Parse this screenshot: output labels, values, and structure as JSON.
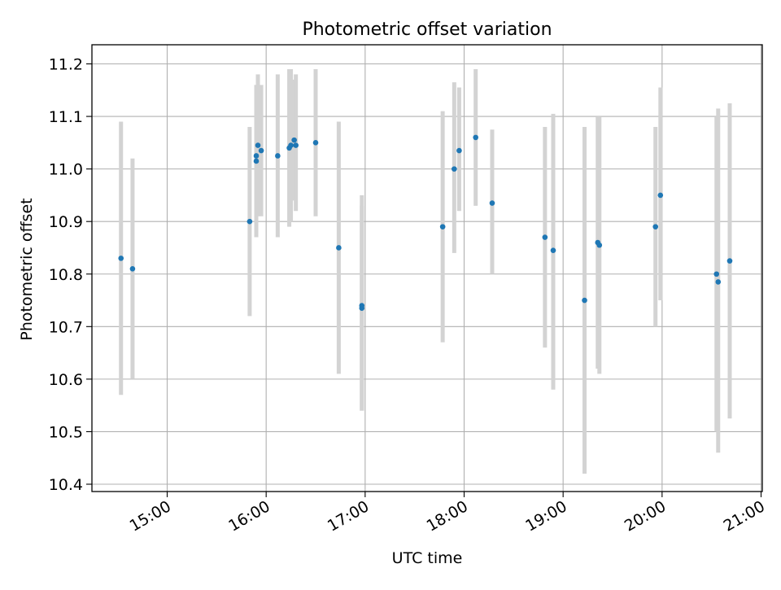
{
  "chart_data": {
    "type": "scatter",
    "title": "Photometric offset variation",
    "xlabel": "UTC time",
    "ylabel": "Photometric offset",
    "x_ticks": [
      "15:00",
      "16:00",
      "17:00",
      "18:00",
      "19:00",
      "20:00",
      "21:00"
    ],
    "y_ticks": [
      "10.4",
      "10.5",
      "10.6",
      "10.7",
      "10.8",
      "10.9",
      "11.0",
      "11.1",
      "11.2"
    ],
    "xlim": [
      "14:15",
      "21:00"
    ],
    "ylim": [
      10.385,
      11.235
    ],
    "grid": true,
    "legend": "none",
    "colors": {
      "points": "#1f77b4",
      "errorbars": "#d3d3d3",
      "grid": "#b0b0b0"
    },
    "points": [
      {
        "x": "14:32",
        "y": 10.83,
        "ylo": 10.57,
        "yhi": 11.09
      },
      {
        "x": "14:39",
        "y": 10.81,
        "ylo": 10.6,
        "yhi": 11.02
      },
      {
        "x": "15:50",
        "y": 10.9,
        "ylo": 10.72,
        "yhi": 11.08
      },
      {
        "x": "15:54",
        "y": 11.015,
        "ylo": 10.87,
        "yhi": 11.16
      },
      {
        "x": "15:54",
        "y": 11.025,
        "ylo": 10.89,
        "yhi": 11.16
      },
      {
        "x": "15:55",
        "y": 11.045,
        "ylo": 10.91,
        "yhi": 11.18
      },
      {
        "x": "15:57",
        "y": 11.035,
        "ylo": 10.91,
        "yhi": 11.16
      },
      {
        "x": "16:07",
        "y": 11.025,
        "ylo": 10.87,
        "yhi": 11.18
      },
      {
        "x": "16:14",
        "y": 11.04,
        "ylo": 10.89,
        "yhi": 11.19
      },
      {
        "x": "16:15",
        "y": 11.045,
        "ylo": 10.9,
        "yhi": 11.19
      },
      {
        "x": "16:17",
        "y": 11.055,
        "ylo": 10.94,
        "yhi": 11.17
      },
      {
        "x": "16:18",
        "y": 11.045,
        "ylo": 10.92,
        "yhi": 11.18
      },
      {
        "x": "16:30",
        "y": 11.05,
        "ylo": 10.91,
        "yhi": 11.19
      },
      {
        "x": "16:44",
        "y": 10.85,
        "ylo": 10.61,
        "yhi": 11.09
      },
      {
        "x": "16:58",
        "y": 10.74,
        "ylo": 10.54,
        "yhi": 10.95
      },
      {
        "x": "16:58",
        "y": 10.735,
        "ylo": 10.54,
        "yhi": 10.93
      },
      {
        "x": "17:47",
        "y": 10.89,
        "ylo": 10.67,
        "yhi": 11.11
      },
      {
        "x": "17:54",
        "y": 11.0,
        "ylo": 10.84,
        "yhi": 11.165
      },
      {
        "x": "17:57",
        "y": 11.035,
        "ylo": 10.92,
        "yhi": 11.155
      },
      {
        "x": "18:07",
        "y": 11.06,
        "ylo": 10.93,
        "yhi": 11.19
      },
      {
        "x": "18:17",
        "y": 10.935,
        "ylo": 10.8,
        "yhi": 11.075
      },
      {
        "x": "18:49",
        "y": 10.87,
        "ylo": 10.66,
        "yhi": 11.08
      },
      {
        "x": "18:54",
        "y": 10.845,
        "ylo": 10.58,
        "yhi": 11.105
      },
      {
        "x": "19:13",
        "y": 10.75,
        "ylo": 10.42,
        "yhi": 11.08
      },
      {
        "x": "19:21",
        "y": 10.86,
        "ylo": 10.62,
        "yhi": 11.1
      },
      {
        "x": "19:22",
        "y": 10.855,
        "ylo": 10.61,
        "yhi": 11.1
      },
      {
        "x": "19:56",
        "y": 10.89,
        "ylo": 10.7,
        "yhi": 11.08
      },
      {
        "x": "19:59",
        "y": 10.95,
        "ylo": 10.75,
        "yhi": 11.155
      },
      {
        "x": "20:33",
        "y": 10.8,
        "ylo": 10.5,
        "yhi": 11.1
      },
      {
        "x": "20:34",
        "y": 10.785,
        "ylo": 10.46,
        "yhi": 11.115
      },
      {
        "x": "20:41",
        "y": 10.825,
        "ylo": 10.525,
        "yhi": 11.125
      }
    ]
  }
}
